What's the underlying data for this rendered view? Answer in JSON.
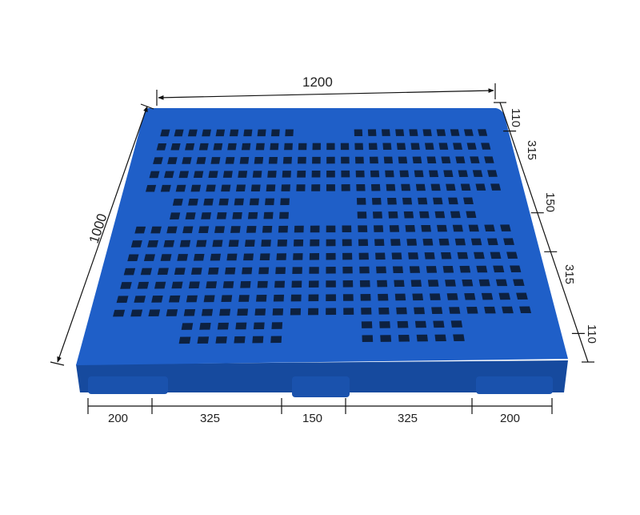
{
  "product": "plastic pallet",
  "colors": {
    "pallet": "#1f5fc8",
    "pallet_dark": "#164a9e",
    "hole": "#0d2140",
    "dimension_line": "#111111"
  },
  "dimensions": {
    "length": "1200",
    "width": "1000",
    "right_side": [
      "110",
      "315",
      "150",
      "315",
      "110"
    ],
    "front": [
      "200",
      "325",
      "150",
      "325",
      "200"
    ]
  }
}
